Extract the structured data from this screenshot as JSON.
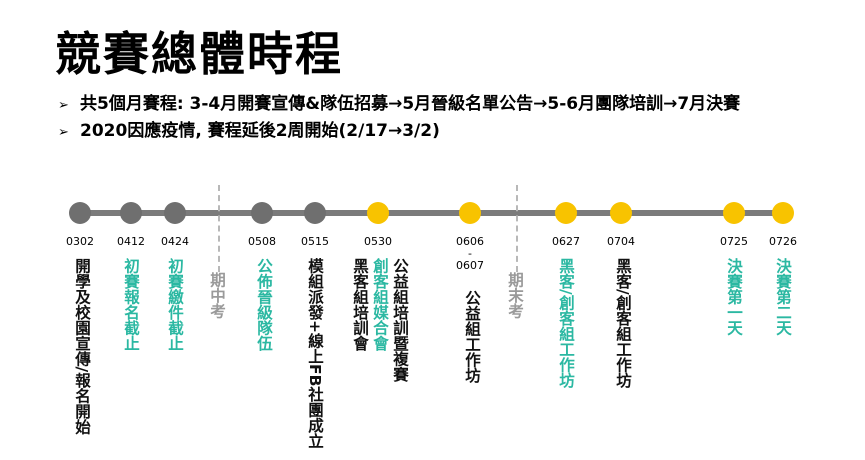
{
  "title": "競賽總體時程",
  "bullets": [
    "共5個月賽程: 3-4月開賽宣傳&隊伍招募→5月晉級名單公告→5-6月團隊培訓→7月決賽",
    "2020因應疫情, 賽程延後2周開始(2/17→3/2)"
  ],
  "colors": {
    "gray": "#6f6f6f",
    "yellow": "#f8c300",
    "teal": "#2bb8a2",
    "line": "#7b7b7b"
  },
  "timeline": [
    {
      "date": "0302",
      "color": "gray",
      "labels": [
        {
          "text": "開學及校園宣傳/報名開始",
          "color": "dark"
        }
      ]
    },
    {
      "date": "0412",
      "color": "gray",
      "labels": [
        {
          "text": "初賽報名截止",
          "color": "teal"
        }
      ]
    },
    {
      "date": "0424",
      "color": "gray",
      "labels": [
        {
          "text": "初賽繳件截止",
          "color": "teal"
        }
      ]
    },
    {
      "date": "0508",
      "color": "gray",
      "labels": [
        {
          "text": "公佈晉級隊伍",
          "color": "teal"
        }
      ]
    },
    {
      "date": "0515",
      "color": "gray",
      "labels": [
        {
          "text": "模組派發+線上FB社團成立",
          "color": "dark"
        }
      ]
    },
    {
      "date": "0530",
      "color": "yellow",
      "labels": [
        {
          "text": "公益組培訓暨複賽",
          "color": "dark"
        },
        {
          "text": "創客組媒合會",
          "color": "teal"
        },
        {
          "text": "黑客組培訓會",
          "color": "dark"
        }
      ]
    },
    {
      "date": "0606",
      "date_sep": "-",
      "date2": "0607",
      "color": "yellow",
      "labels": [
        {
          "text": "公益組工作坊",
          "color": "dark"
        }
      ]
    },
    {
      "date": "0627",
      "color": "yellow",
      "labels": [
        {
          "text": "黑客/創客組工作坊",
          "color": "teal"
        }
      ]
    },
    {
      "date": "0704",
      "color": "yellow",
      "labels": [
        {
          "text": "黑客/創客組工作坊",
          "color": "dark"
        }
      ]
    },
    {
      "date": "0725",
      "color": "yellow",
      "labels": [
        {
          "text": "決賽第一天",
          "color": "teal"
        }
      ]
    },
    {
      "date": "0726",
      "color": "yellow",
      "labels": [
        {
          "text": "決賽第二天",
          "color": "teal"
        }
      ]
    }
  ],
  "exams": [
    "期中考",
    "期末考"
  ]
}
